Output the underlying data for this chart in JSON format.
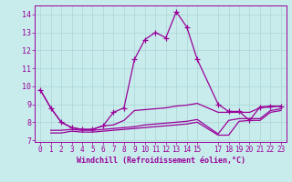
{
  "xlabel": "Windchill (Refroidissement éolien,°C)",
  "bg_color": "#c8ecec",
  "grid_color": "#b0d8d8",
  "line_color": "#990099",
  "xlim": [
    -0.5,
    23.5
  ],
  "ylim": [
    6.9,
    14.5
  ],
  "yticks": [
    7,
    8,
    9,
    10,
    11,
    12,
    13,
    14
  ],
  "xtick_positions": [
    0,
    1,
    2,
    3,
    4,
    5,
    6,
    7,
    8,
    9,
    10,
    11,
    12,
    13,
    14,
    15,
    17,
    18,
    19,
    20,
    21,
    22,
    23
  ],
  "xtick_labels": [
    "0",
    "1",
    "2",
    "3",
    "4",
    "5",
    "6",
    "7",
    "8",
    "9",
    "10",
    "11",
    "12",
    "13",
    "14",
    "15",
    "17",
    "18",
    "19",
    "20",
    "21",
    "22",
    "23"
  ],
  "series": [
    {
      "x": [
        0,
        1,
        2,
        3,
        4,
        5,
        6,
        7,
        8,
        9,
        10,
        11,
        12,
        13,
        14,
        15,
        17,
        18,
        19,
        20,
        21,
        22,
        23
      ],
      "y": [
        9.8,
        8.8,
        8.0,
        7.7,
        7.6,
        7.6,
        7.8,
        8.55,
        8.8,
        11.5,
        12.6,
        13.0,
        12.7,
        14.15,
        13.3,
        11.5,
        9.0,
        8.6,
        8.6,
        8.1,
        8.85,
        8.9,
        8.9
      ],
      "marker": "+"
    },
    {
      "x": [
        0,
        1,
        2,
        3,
        4,
        5,
        6,
        7,
        8,
        9,
        10,
        11,
        12,
        13,
        14,
        15,
        17,
        18,
        19,
        20,
        21,
        22,
        23
      ],
      "y": [
        9.8,
        8.8,
        8.0,
        7.7,
        7.6,
        7.6,
        7.8,
        7.85,
        8.1,
        8.65,
        8.7,
        8.75,
        8.8,
        8.9,
        8.95,
        9.05,
        8.55,
        8.55,
        8.55,
        8.55,
        8.8,
        8.85,
        8.9
      ],
      "marker": null
    },
    {
      "x": [
        1,
        2,
        3,
        4,
        5,
        6,
        7,
        8,
        9,
        10,
        11,
        12,
        13,
        14,
        15,
        17,
        18,
        19,
        20,
        21,
        22,
        23
      ],
      "y": [
        7.55,
        7.55,
        7.6,
        7.55,
        7.55,
        7.6,
        7.65,
        7.7,
        7.75,
        7.85,
        7.9,
        7.95,
        8.0,
        8.05,
        8.15,
        7.35,
        8.1,
        8.2,
        8.2,
        8.2,
        8.65,
        8.75
      ],
      "marker": null
    },
    {
      "x": [
        1,
        2,
        3,
        4,
        5,
        6,
        7,
        8,
        9,
        10,
        11,
        12,
        13,
        14,
        15,
        17,
        18,
        19,
        20,
        21,
        22,
        23
      ],
      "y": [
        7.4,
        7.4,
        7.5,
        7.45,
        7.45,
        7.5,
        7.55,
        7.6,
        7.65,
        7.7,
        7.75,
        7.8,
        7.85,
        7.9,
        8.0,
        7.28,
        7.28,
        8.05,
        8.1,
        8.1,
        8.55,
        8.65
      ],
      "marker": null
    }
  ],
  "marker_size": 4,
  "line_width": 0.9
}
